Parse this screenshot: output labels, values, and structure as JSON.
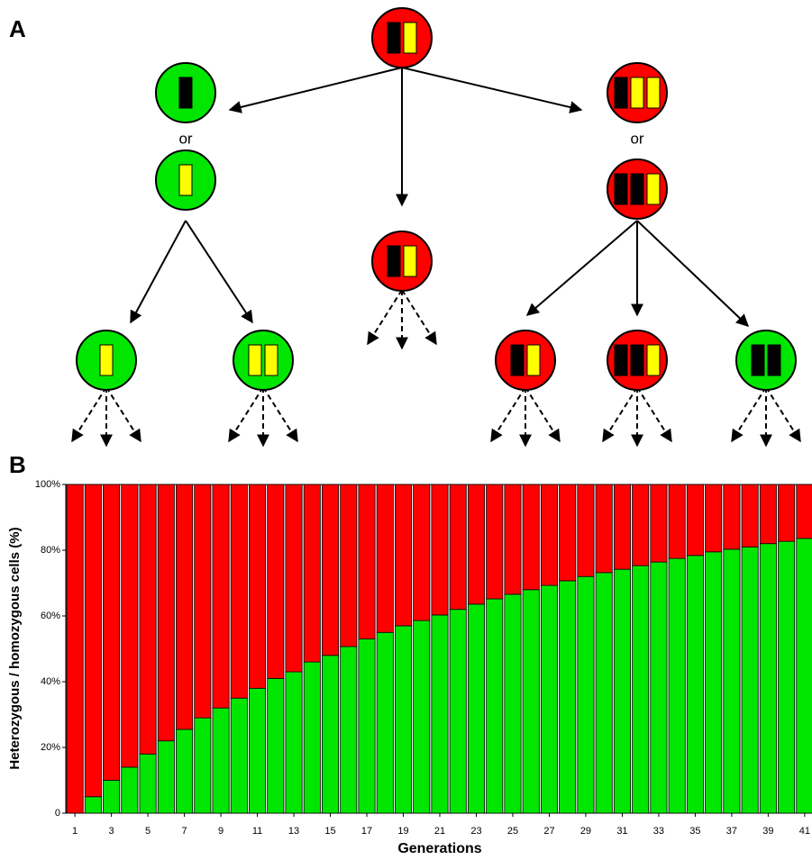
{
  "panel_labels": [
    "A",
    "B"
  ],
  "diagram": {
    "connectors": [
      "or",
      "or"
    ]
  },
  "chart_data": {
    "type": "stacked-bar",
    "ylabel": "Heterozygous / homozygous cells (%)",
    "xlabel": "Generations",
    "categories": [
      "1",
      null,
      "3",
      null,
      "5",
      null,
      "7",
      null,
      "9",
      null,
      "11",
      null,
      "13",
      null,
      "15",
      null,
      "17",
      null,
      "19",
      null,
      "21",
      null,
      "23",
      null,
      "25",
      null,
      "27",
      null,
      "29",
      null,
      "31",
      null,
      "33",
      null,
      "35",
      null,
      "37",
      null,
      "39",
      null,
      "41"
    ],
    "series": [
      {
        "color": "#00e600",
        "values": [
          0,
          5,
          10,
          14,
          18,
          22,
          25.5,
          29,
          32,
          35,
          38,
          41,
          43,
          46,
          48,
          50.7,
          53,
          55,
          57,
          58.6,
          60.3,
          62,
          63.6,
          65.2,
          66.6,
          68,
          69.3,
          70.7,
          72,
          73.2,
          74.2,
          75.3,
          76.4,
          77.5,
          78.4,
          79.5,
          80.3,
          81,
          82,
          82.7,
          83.6
        ]
      },
      {
        "color": "#ff0000",
        "values": [
          100,
          95,
          90,
          86,
          82,
          78,
          74.5,
          71,
          68,
          65,
          62,
          59,
          57,
          54,
          52,
          49.3,
          47,
          45,
          43,
          41.4,
          39.7,
          38,
          36.4,
          34.8,
          33.4,
          32,
          30.7,
          29.3,
          28,
          26.8,
          25.8,
          24.7,
          23.6,
          22.5,
          21.6,
          20.5,
          19.7,
          19,
          18,
          17.3,
          16.4
        ]
      }
    ],
    "ylim": [
      0,
      100
    ],
    "yticks": [
      0,
      {
        "value": 20,
        "label": "20%"
      },
      {
        "value": 40,
        "label": "40%"
      },
      {
        "value": 60,
        "label": "60%"
      },
      {
        "value": 80,
        "label": "80%"
      },
      {
        "value": 100,
        "label": "100%"
      }
    ]
  }
}
